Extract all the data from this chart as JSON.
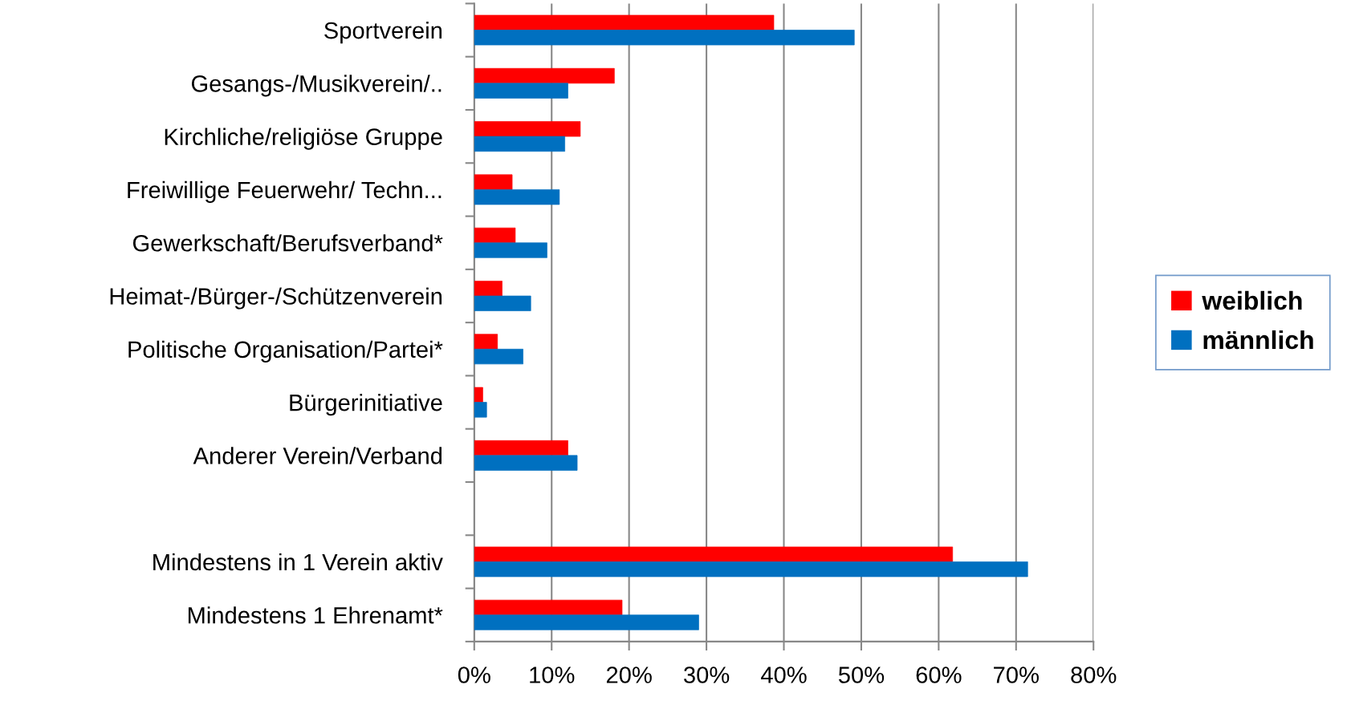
{
  "chart_data": {
    "type": "bar",
    "orientation": "horizontal",
    "categories": [
      "Sportverein",
      "Gesangs-/Musikverein/..",
      "Kirchliche/religiöse Gruppe",
      "Freiwillige Feuerwehr/ Techn...",
      "Gewerkschaft/Berufsverband*",
      "Heimat-/Bürger-/Schützenverein",
      "Politische Organisation/Partei*",
      "Bürgerinitiative",
      "Anderer Verein/Verband",
      null,
      "Mindestens in 1 Verein aktiv",
      "Mindestens 1 Ehrenamt*"
    ],
    "series": [
      {
        "name": "weiblich",
        "color": "#ff0000",
        "values": [
          38.7,
          18.1,
          13.7,
          4.9,
          5.3,
          3.6,
          3.0,
          1.1,
          12.1,
          null,
          61.8,
          19.1
        ]
      },
      {
        "name": "männlich",
        "color": "#0070c0",
        "values": [
          49.1,
          12.1,
          11.7,
          11.0,
          9.4,
          7.3,
          6.3,
          1.6,
          13.3,
          null,
          71.5,
          29.0
        ]
      }
    ],
    "xlim": [
      0,
      80
    ],
    "xticks": [
      {
        "value": 0,
        "label": "0%"
      },
      {
        "value": 10,
        "label": "10%"
      },
      {
        "value": 20,
        "label": "20%"
      },
      {
        "value": 30,
        "label": "30%"
      },
      {
        "value": 40,
        "label": "40%"
      },
      {
        "value": 50,
        "label": "50%"
      },
      {
        "value": 60,
        "label": "60%"
      },
      {
        "value": 70,
        "label": "70%"
      },
      {
        "value": 80,
        "label": "80%"
      }
    ],
    "grid": "x",
    "legend": "right"
  }
}
